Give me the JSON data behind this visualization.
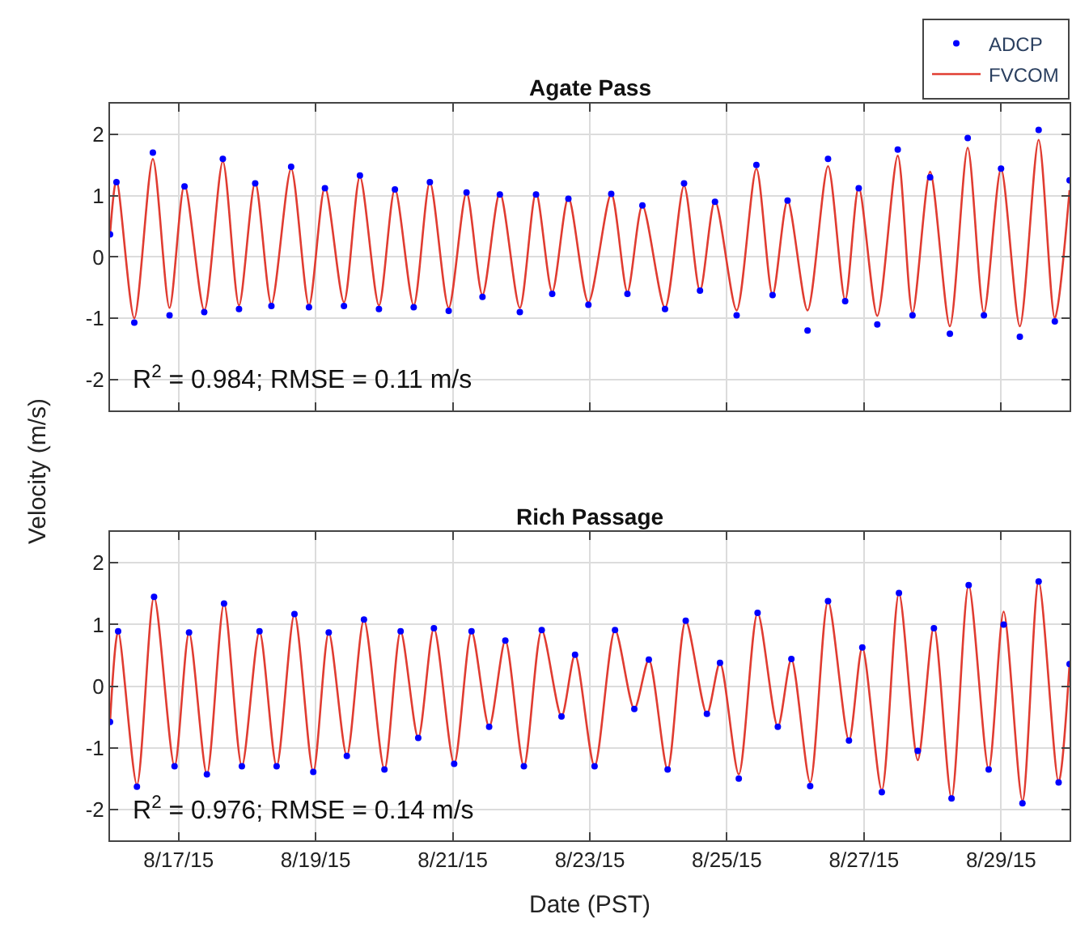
{
  "chart_data": [
    {
      "type": "line",
      "title": "Agate Pass",
      "ylabel": "Velocity (m/s)",
      "annotations": [
        "R$^{2}$ = 0.984; RMSE = 0.11 m/s"
      ],
      "xlim": [
        "--08-16T00:00",
        "--08-30T00:00"
      ],
      "ylim": [
        -2.5,
        2.5
      ],
      "yticks": [
        -2,
        -1,
        0,
        1,
        2
      ],
      "xticks": [
        {
          "value": "--08-17",
          "label": "8/17/15"
        },
        {
          "value": "--08-19",
          "label": "8/19/15"
        },
        {
          "value": "--08-21",
          "label": "8/21/15"
        },
        {
          "value": "--08-23",
          "label": "8/23/15"
        },
        {
          "value": "--08-25",
          "label": "8/25/15"
        },
        {
          "value": "--08-27",
          "label": "8/27/15"
        },
        {
          "value": "--08-29",
          "label": "8/29/15"
        }
      ],
      "tick_labels": "y",
      "grid": true,
      "legend": "top right",
      "x": [
        "--08-16T00:00",
        "--08-16T02:15",
        "--08-16T08:30",
        "--08-16T15:00",
        "--08-16T20:50",
        "--08-17T02:05",
        "--08-17T09:00",
        "--08-17T15:30",
        "--08-17T21:10",
        "--08-18T02:50",
        "--08-18T08:30",
        "--08-18T15:25",
        "--08-18T21:40",
        "--08-19T03:15",
        "--08-19T09:55",
        "--08-19T15:30",
        "--08-19T22:10",
        "--08-20T03:45",
        "--08-20T10:20",
        "--08-20T16:00",
        "--08-20T22:35",
        "--08-21T04:50",
        "--08-21T10:25",
        "--08-21T16:30",
        "--08-21T23:30",
        "--08-22T05:10",
        "--08-22T10:50",
        "--08-22T16:30",
        "--08-22T23:30",
        "--08-23T07:30",
        "--08-23T13:10",
        "--08-23T18:25",
        "--08-24T02:20",
        "--08-24T09:00",
        "--08-24T14:35",
        "--08-24T19:50",
        "--08-25T03:25",
        "--08-25T10:20",
        "--08-25T16:00",
        "--08-25T21:15",
        "--08-26T04:15",
        "--08-26T11:25",
        "--08-26T17:25",
        "--08-26T22:10",
        "--08-27T04:40",
        "--08-27T11:50",
        "--08-27T17:00",
        "--08-27T23:10",
        "--08-28T06:05",
        "--08-28T12:20",
        "--08-28T18:00",
        "--08-29T00:00",
        "--08-29T06:35",
        "--08-29T13:10",
        "--08-29T18:50",
        "--08-30T00:00"
      ],
      "series": [
        {
          "name": "ADCP",
          "type": "scatter",
          "marker": "circle",
          "color": "#0000ff",
          "values": [
            0.37,
            1.22,
            -1.07,
            1.7,
            -0.95,
            1.15,
            -0.9,
            1.6,
            -0.85,
            1.2,
            -0.8,
            1.47,
            -0.82,
            1.12,
            -0.8,
            1.33,
            -0.85,
            1.1,
            -0.82,
            1.22,
            -0.88,
            1.05,
            -0.65,
            1.02,
            -0.9,
            1.02,
            -0.6,
            0.95,
            -0.78,
            1.03,
            -0.6,
            0.84,
            -0.85,
            1.2,
            -0.55,
            0.9,
            -0.95,
            1.5,
            -0.62,
            0.92,
            -1.2,
            1.6,
            -0.72,
            1.12,
            -1.1,
            1.75,
            -0.95,
            1.3,
            -1.25,
            1.94,
            -0.95,
            1.44,
            -1.3,
            2.07,
            -1.05,
            1.25
          ]
        },
        {
          "name": "FVCOM",
          "type": "line",
          "line_style": "solid",
          "color": "#e03c31",
          "values": [
            0.37,
            1.26,
            -1.0,
            1.6,
            -0.83,
            1.18,
            -0.87,
            1.56,
            -0.79,
            1.22,
            -0.77,
            1.44,
            -0.79,
            1.14,
            -0.74,
            1.31,
            -0.79,
            1.11,
            -0.79,
            1.22,
            -0.83,
            1.05,
            -0.62,
            1.05,
            -0.83,
            1.05,
            -0.57,
            0.97,
            -0.74,
            1.03,
            -0.57,
            0.84,
            -0.83,
            1.16,
            -0.55,
            0.92,
            -0.87,
            1.44,
            -0.62,
            0.92,
            -0.87,
            1.48,
            -0.7,
            1.14,
            -0.96,
            1.65,
            -0.91,
            1.39,
            -1.13,
            1.78,
            -0.91,
            1.44,
            -1.13,
            1.91,
            -1.0,
            1.09
          ]
        }
      ]
    },
    {
      "type": "line",
      "title": "Rich Passage",
      "xlabel": "Date (PST)",
      "annotations": [
        "R$^{2}$ = 0.976; RMSE = 0.14 m/s"
      ],
      "xlim": [
        "--08-16T00:00",
        "--08-30T00:00"
      ],
      "ylim": [
        -2.5,
        2.5
      ],
      "yticks": [
        -2,
        -1,
        0,
        1,
        2
      ],
      "xticks": [
        {
          "value": "--08-17",
          "label": "8/17/15"
        },
        {
          "value": "--08-19",
          "label": "8/19/15"
        },
        {
          "value": "--08-21",
          "label": "8/21/15"
        },
        {
          "value": "--08-23",
          "label": "8/23/15"
        },
        {
          "value": "--08-25",
          "label": "8/25/15"
        },
        {
          "value": "--08-27",
          "label": "8/27/15"
        },
        {
          "value": "--08-29",
          "label": "8/29/15"
        }
      ],
      "grid": true,
      "x": [
        "--08-16T00:00",
        "--08-16T02:50",
        "--08-16T09:25",
        "--08-16T15:25",
        "--08-16T22:35",
        "--08-17T03:40",
        "--08-17T09:55",
        "--08-17T15:55",
        "--08-17T22:10",
        "--08-18T04:20",
        "--08-18T10:20",
        "--08-18T16:35",
        "--08-18T23:10",
        "--08-19T04:35",
        "--08-19T10:55",
        "--08-19T16:55",
        "--08-20T00:05",
        "--08-20T05:45",
        "--08-20T11:55",
        "--08-20T17:25",
        "--08-21T00:30",
        "--08-21T06:35",
        "--08-21T12:45",
        "--08-21T18:25",
        "--08-22T00:55",
        "--08-22T07:10",
        "--08-22T14:05",
        "--08-22T18:50",
        "--08-23T01:40",
        "--08-23T08:50",
        "--08-23T15:35",
        "--08-23T20:40",
        "--08-24T03:15",
        "--08-24T09:35",
        "--08-24T17:00",
        "--08-24T21:35",
        "--08-25T04:10",
        "--08-25T10:45",
        "--08-25T17:50",
        "--08-25T22:35",
        "--08-26T05:10",
        "--08-26T11:25",
        "--08-26T18:45",
        "--08-26T23:25",
        "--08-27T06:15",
        "--08-27T12:15",
        "--08-27T18:50",
        "--08-28T00:30",
        "--08-28T06:40",
        "--08-28T12:40",
        "--08-28T19:40",
        "--08-29T00:55",
        "--08-29T07:30",
        "--08-29T13:10",
        "--08-29T20:10",
        "--08-30T00:00"
      ],
      "series": [
        {
          "type": "scatter",
          "marker": "circle",
          "color": "#0000ff",
          "values": [
            -0.58,
            0.89,
            -1.63,
            1.45,
            -1.3,
            0.87,
            -1.43,
            1.34,
            -1.3,
            0.89,
            -1.3,
            1.17,
            -1.39,
            0.87,
            -1.13,
            1.08,
            -1.35,
            0.89,
            -0.84,
            0.94,
            -1.26,
            0.89,
            -0.66,
            0.74,
            -1.3,
            0.91,
            -0.49,
            0.51,
            -1.3,
            0.91,
            -0.37,
            0.43,
            -1.35,
            1.06,
            -0.45,
            0.38,
            -1.5,
            1.19,
            -0.66,
            0.44,
            -1.62,
            1.38,
            -0.88,
            0.63,
            -1.72,
            1.51,
            -1.05,
            0.94,
            -1.82,
            1.64,
            -1.35,
            1.0,
            -1.9,
            1.7,
            -1.56,
            0.36
          ]
        },
        {
          "type": "line",
          "line_style": "solid",
          "color": "#e03c31",
          "values": [
            -0.58,
            0.89,
            -1.6,
            1.45,
            -1.3,
            0.87,
            -1.43,
            1.34,
            -1.3,
            0.89,
            -1.3,
            1.17,
            -1.39,
            0.87,
            -1.13,
            1.08,
            -1.35,
            0.89,
            -0.84,
            0.94,
            -1.26,
            0.89,
            -0.66,
            0.74,
            -1.3,
            0.91,
            -0.49,
            0.51,
            -1.3,
            0.91,
            -0.37,
            0.43,
            -1.35,
            1.06,
            -0.45,
            0.38,
            -1.43,
            1.19,
            -0.66,
            0.44,
            -1.56,
            1.38,
            -0.88,
            0.63,
            -1.69,
            1.51,
            -1.2,
            0.97,
            -1.82,
            1.64,
            -1.35,
            1.21,
            -1.86,
            1.7,
            -1.56,
            0.36
          ]
        }
      ]
    }
  ]
}
